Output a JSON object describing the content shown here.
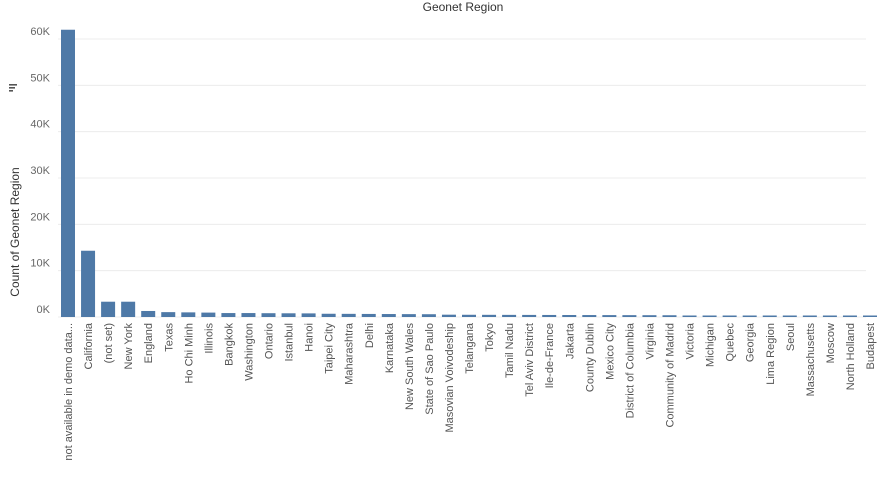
{
  "chart_data": {
    "type": "bar",
    "title": "Geonet Region",
    "xlabel": "",
    "ylabel": "Count of Geonet Region",
    "ylim": [
      0,
      62000
    ],
    "yticks": [
      0,
      10000,
      20000,
      30000,
      40000,
      50000,
      60000
    ],
    "ytick_labels": [
      "0K",
      "10K",
      "20K",
      "30K",
      "40K",
      "50K",
      "60K"
    ],
    "grid": true,
    "bar_color": "#4e79a7",
    "sort_icon": "sort-descending-icon",
    "categories": [
      "not available in demo data...",
      "California",
      "(not set)",
      "New York",
      "England",
      "Texas",
      "Ho Chi Minh",
      "Illinois",
      "Bangkok",
      "Washington",
      "Ontario",
      "Istanbul",
      "Hanoi",
      "Taipei City",
      "Maharashtra",
      "Delhi",
      "Karnataka",
      "New South Wales",
      "State of Sao Paulo",
      "Masovian Voivodeship",
      "Telangana",
      "Tokyo",
      "Tamil Nadu",
      "Tel Aviv District",
      "Ile-de-France",
      "Jakarta",
      "County Dublin",
      "Mexico City",
      "District of Columbia",
      "Virginia",
      "Community of Madrid",
      "Victoria",
      "Michigan",
      "Quebec",
      "Georgia",
      "Lima Region",
      "Seoul",
      "Massachusetts",
      "Moscow",
      "North Holland",
      "Budapest"
    ],
    "values": [
      62000,
      14300,
      3300,
      3300,
      1300,
      1050,
      1000,
      950,
      850,
      850,
      820,
      800,
      780,
      700,
      680,
      660,
      640,
      620,
      600,
      500,
      480,
      470,
      460,
      450,
      440,
      430,
      420,
      410,
      400,
      390,
      380,
      250,
      240,
      230,
      220,
      210,
      200,
      190,
      180,
      170,
      160
    ]
  }
}
